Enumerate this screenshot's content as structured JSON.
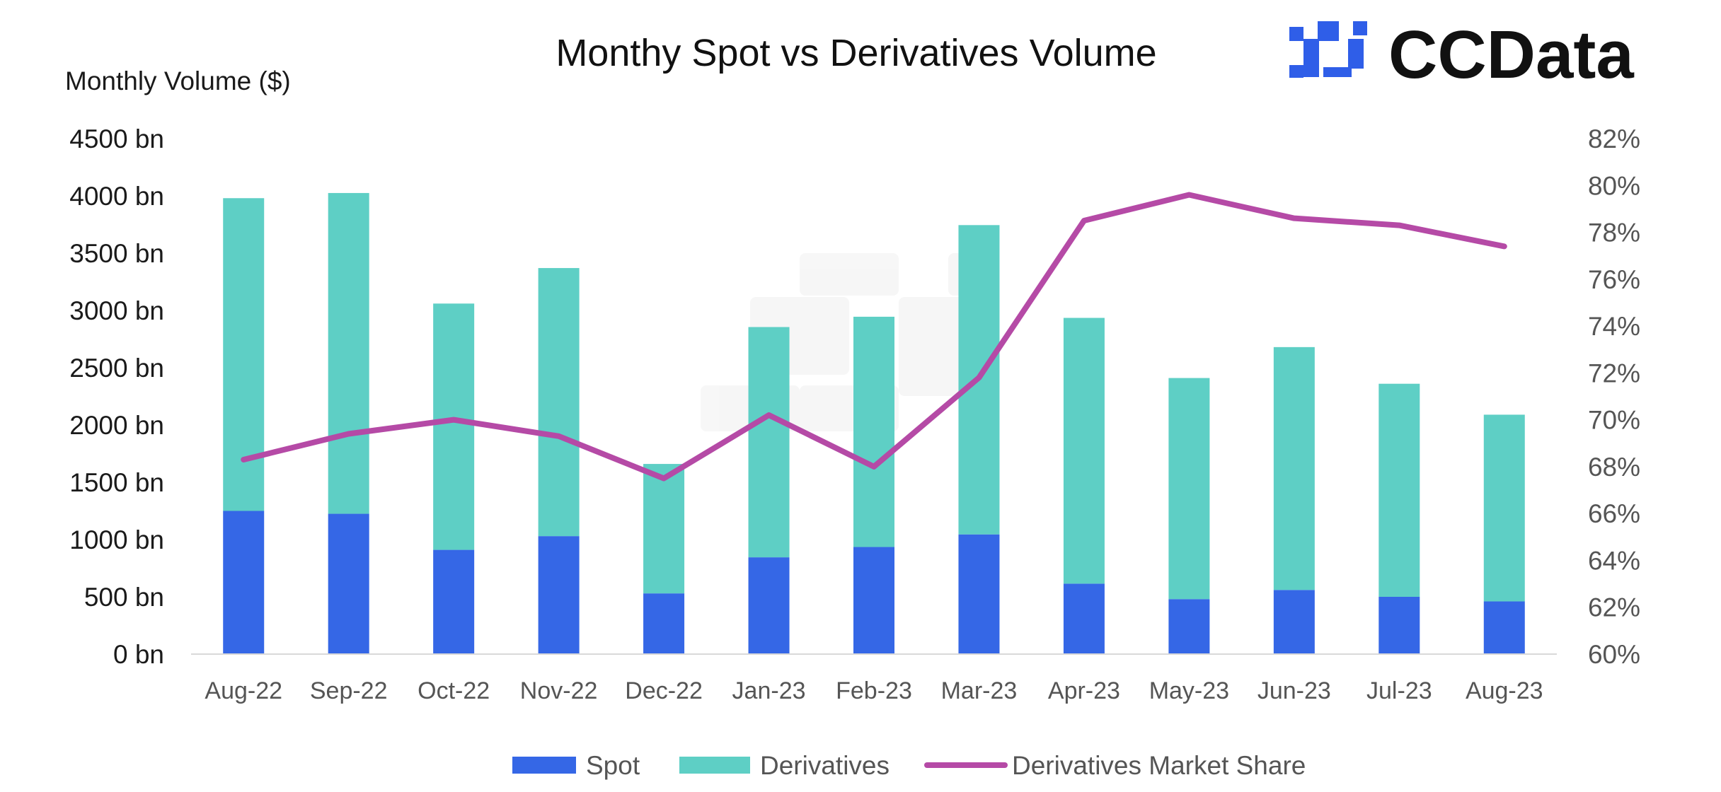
{
  "brand": {
    "name": "CCData",
    "logo_color": "#2f5ee8"
  },
  "chart_data": {
    "type": "bar",
    "stacked": true,
    "title": "Monthy Spot vs Derivatives Volume",
    "ylabel": "Monthly Volume ($)",
    "ylim": [
      0,
      4500
    ],
    "y_ticks": [
      "0 bn",
      "500 bn",
      "1000 bn",
      "1500 bn",
      "2000 bn",
      "2500 bn",
      "3000 bn",
      "3500 bn",
      "4000 bn",
      "4500 bn"
    ],
    "y2lim": [
      60,
      82
    ],
    "y2_ticks": [
      "60%",
      "62%",
      "64%",
      "66%",
      "68%",
      "70%",
      "72%",
      "74%",
      "76%",
      "78%",
      "80%",
      "82%"
    ],
    "categories": [
      "Aug-22",
      "Sep-22",
      "Oct-22",
      "Nov-22",
      "Dec-22",
      "Jan-23",
      "Feb-23",
      "Mar-23",
      "Apr-23",
      "May-23",
      "Jun-23",
      "Jul-23",
      "Aug-23"
    ],
    "series": [
      {
        "name": "Spot",
        "type": "bar",
        "color": "#3567e6",
        "values": [
          1250,
          1225,
          910,
          1030,
          530,
          845,
          935,
          1045,
          615,
          480,
          560,
          500,
          460
        ]
      },
      {
        "name": "Derivatives",
        "type": "bar",
        "color": "#5ecfc5",
        "values": [
          2730,
          2800,
          2150,
          2340,
          1130,
          2010,
          2010,
          2700,
          2320,
          1930,
          2120,
          1860,
          1630
        ]
      },
      {
        "name": "Derivatives Market Share",
        "type": "line",
        "axis": "right",
        "color": "#b54aa6",
        "values": [
          68.3,
          69.4,
          70.0,
          69.3,
          67.5,
          70.2,
          68.0,
          71.8,
          78.5,
          79.6,
          78.6,
          78.3,
          77.4
        ]
      }
    ],
    "legend": {
      "position": "bottom"
    },
    "grid": false
  }
}
